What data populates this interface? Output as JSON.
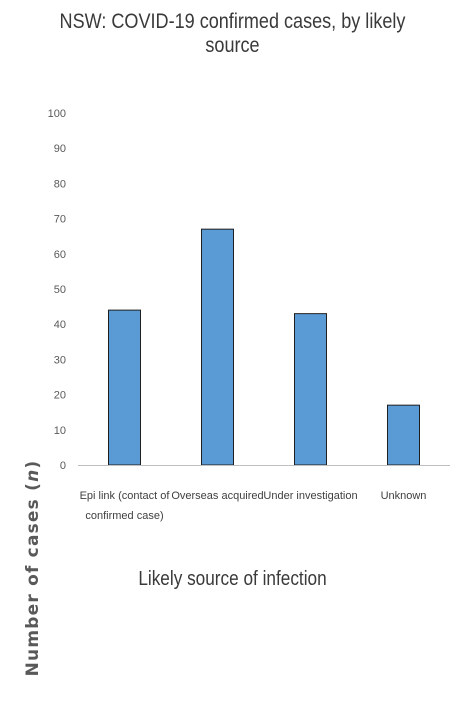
{
  "chart_data": {
    "type": "bar",
    "title": "NSW: COVID-19 confirmed cases, by likely source",
    "xlabel": "Likely source of infection",
    "ylabel": "Number of cases (n)",
    "ylabel_main": "Number of cases (",
    "ylabel_italic": "n",
    "ylabel_end": ")",
    "categories": [
      [
        "Epi link (contact of",
        "confirmed case)"
      ],
      [
        "Overseas acquired"
      ],
      [
        "Under investigation"
      ],
      [
        "Unknown"
      ]
    ],
    "values": [
      44,
      67,
      43,
      17
    ],
    "ylim": [
      0,
      100
    ],
    "yticks": [
      0,
      10,
      20,
      30,
      40,
      50,
      60,
      70,
      80,
      90,
      100
    ],
    "grid": false,
    "legend": "none",
    "colors": {
      "bar_fill": "#5b9bd5",
      "bar_stroke": "#1f1f1f",
      "axis": "#bfbfbf"
    }
  }
}
